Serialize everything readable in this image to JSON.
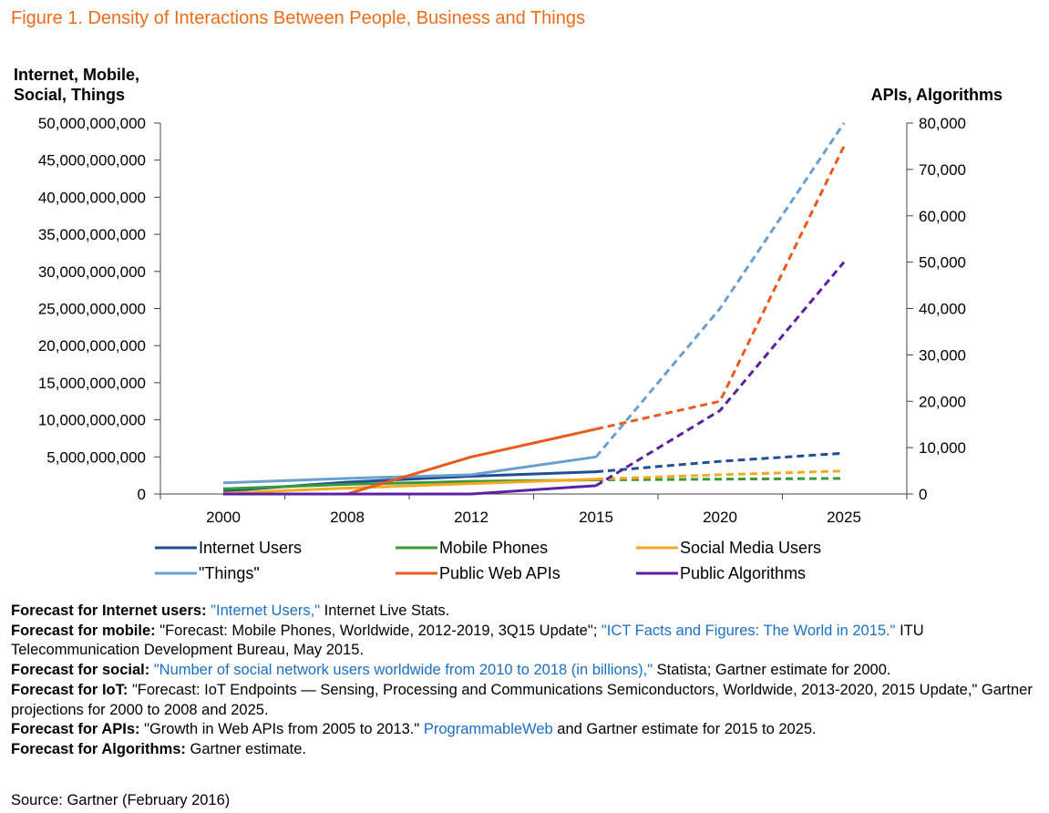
{
  "title": "Figure 1. Density of Interactions Between People, Business and Things",
  "chart_data": {
    "type": "line",
    "categories": [
      "2000",
      "2008",
      "2012",
      "2015",
      "2020",
      "2025"
    ],
    "left_axis": {
      "label_line1": "Internet, Mobile,",
      "label_line2": "Social, Things",
      "ylim": [
        0,
        50000000000
      ],
      "ticks": [
        "0",
        "5,000,000,000",
        "10,000,000,000",
        "15,000,000,000",
        "20,000,000,000",
        "25,000,000,000",
        "30,000,000,000",
        "35,000,000,000",
        "40,000,000,000",
        "45,000,000,000",
        "50,000,000,000"
      ]
    },
    "right_axis": {
      "label": "APIs, Algorithms",
      "ylim": [
        0,
        80000
      ],
      "ticks": [
        "0",
        "10,000",
        "20,000",
        "30,000",
        "40,000",
        "50,000",
        "60,000",
        "70,000",
        "80,000"
      ]
    },
    "forecast_from_index": 3,
    "series": [
      {
        "name": "Internet Users",
        "axis": "left",
        "color": "#1f4e96",
        "values": [
          400000000,
          1600000000,
          2400000000,
          3000000000,
          4400000000,
          5500000000
        ]
      },
      {
        "name": "Mobile Phones",
        "axis": "left",
        "color": "#3a9a3a",
        "values": [
          700000000,
          1300000000,
          1700000000,
          1900000000,
          2000000000,
          2100000000
        ]
      },
      {
        "name": "Social Media Users",
        "axis": "left",
        "color": "#f7a823",
        "values": [
          100000000,
          800000000,
          1400000000,
          2000000000,
          2600000000,
          3100000000
        ]
      },
      {
        "name": "\"Things\"",
        "axis": "left",
        "color": "#6b9fd0",
        "values": [
          1500000000,
          2100000000,
          2600000000,
          5000000000,
          25000000000,
          50000000000
        ]
      },
      {
        "name": "Public Web APIs",
        "axis": "right",
        "color": "#e85a1e",
        "values": [
          0,
          0,
          8000,
          14000,
          20000,
          75000
        ]
      },
      {
        "name": "Public Algorithms",
        "axis": "right",
        "color": "#5a22a0",
        "values": [
          0,
          0,
          0,
          1800,
          18000,
          50000
        ]
      }
    ],
    "grid": false,
    "legend_position": "bottom"
  },
  "notes": [
    {
      "label": "Forecast for Internet users:",
      "parts": [
        {
          "text": " \"Internet Users,\"",
          "link": true
        },
        {
          "text": " Internet Live Stats.",
          "link": false
        }
      ]
    },
    {
      "label": "Forecast for mobile:",
      "parts": [
        {
          "text": " \"Forecast: Mobile Phones, Worldwide, 2012-2019, 3Q15 Update\"; ",
          "link": false
        },
        {
          "text": "\"ICT Facts and Figures: The World in 2015.\"",
          "link": true
        },
        {
          "text": " ITU Telecommunication Development Bureau, May 2015.",
          "link": false
        }
      ]
    },
    {
      "label": "Forecast for social:",
      "parts": [
        {
          "text": " \"Number of social network users worldwide from 2010 to 2018 (in billions),\"",
          "link": true
        },
        {
          "text": " Statista; Gartner estimate for 2000.",
          "link": false
        }
      ]
    },
    {
      "label": "Forecast for IoT:",
      "parts": [
        {
          "text": " \"Forecast: IoT Endpoints — Sensing, Processing and Communications Semiconductors, Worldwide, 2013-2020, 2015 Update,\" Gartner projections for 2000 to 2008 and 2025.",
          "link": false
        }
      ]
    },
    {
      "label": "Forecast for APIs:",
      "parts": [
        {
          "text": " \"Growth in Web APIs from 2005 to 2013.\" ",
          "link": false
        },
        {
          "text": "ProgrammableWeb",
          "link": true
        },
        {
          "text": " and Gartner estimate for 2015 to 2025.",
          "link": false
        }
      ]
    },
    {
      "label": "Forecast for Algorithms:",
      "parts": [
        {
          "text": " Gartner estimate.",
          "link": false
        }
      ]
    }
  ],
  "source": "Source: Gartner (February 2016)"
}
